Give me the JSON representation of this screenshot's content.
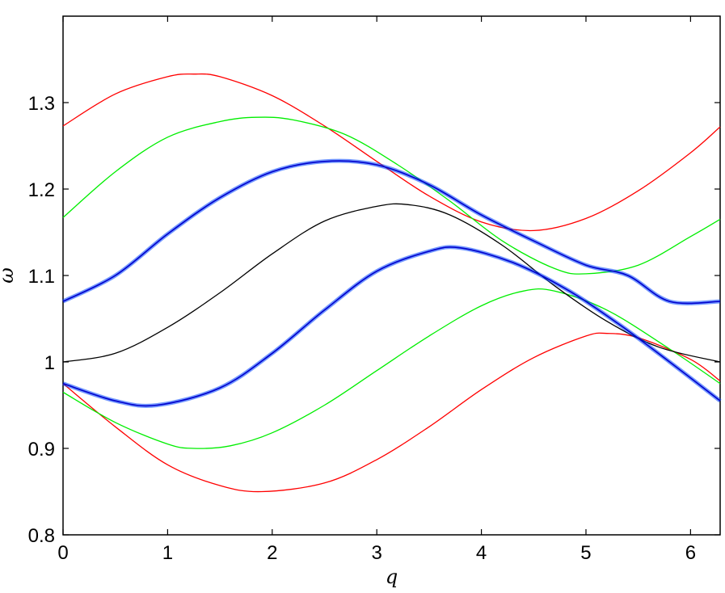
{
  "chart_data": {
    "type": "line",
    "title": "",
    "xlabel": "q",
    "ylabel": "ω",
    "xlim": [
      0,
      6.283
    ],
    "ylim": [
      0.8,
      1.4
    ],
    "xticks": [
      0,
      1,
      2,
      3,
      4,
      5,
      6
    ],
    "xtick_labels": [
      "0",
      "1",
      "2",
      "3",
      "4",
      "5",
      "6"
    ],
    "yticks": [
      0.8,
      0.9,
      1.0,
      1.1,
      1.2,
      1.3
    ],
    "ytick_labels": [
      "0.8",
      "0.9",
      "1",
      "1.1",
      "1.2",
      "1.3"
    ],
    "grid": false,
    "legend": "none",
    "series": [
      {
        "color": "#ff0000",
        "kind": "curve",
        "offset": 0,
        "A": 0.0,
        "B": 0.2,
        "points": [
          [
            0,
            1.273
          ],
          [
            0.5,
            1.31
          ],
          [
            1.0,
            1.33
          ],
          [
            1.25,
            1.333
          ],
          [
            1.5,
            1.33
          ],
          [
            2.0,
            1.308
          ],
          [
            2.5,
            1.273
          ],
          [
            3.0,
            1.232
          ],
          [
            3.5,
            1.192
          ],
          [
            4.0,
            1.162
          ],
          [
            4.5,
            1.152
          ],
          [
            5.0,
            1.166
          ],
          [
            5.5,
            1.198
          ],
          [
            6.0,
            1.242
          ],
          [
            6.283,
            1.272
          ]
        ]
      },
      {
        "color": "#ff0000",
        "kind": "curve",
        "points": [
          [
            0,
            0.975
          ],
          [
            0.5,
            0.925
          ],
          [
            1.0,
            0.881
          ],
          [
            1.5,
            0.857
          ],
          [
            1.9,
            0.85
          ],
          [
            2.5,
            0.86
          ],
          [
            3.0,
            0.887
          ],
          [
            3.5,
            0.925
          ],
          [
            4.0,
            0.968
          ],
          [
            4.5,
            1.005
          ],
          [
            5.0,
            1.03
          ],
          [
            5.2,
            1.033
          ],
          [
            5.5,
            1.028
          ],
          [
            6.0,
            1.003
          ],
          [
            6.283,
            0.978
          ]
        ]
      },
      {
        "color": "#00ee00",
        "kind": "curve",
        "points": [
          [
            0,
            1.167
          ],
          [
            0.5,
            1.22
          ],
          [
            1.0,
            1.26
          ],
          [
            1.5,
            1.278
          ],
          [
            1.85,
            1.283
          ],
          [
            2.2,
            1.28
          ],
          [
            2.7,
            1.263
          ],
          [
            3.2,
            1.228
          ],
          [
            3.7,
            1.186
          ],
          [
            4.2,
            1.14
          ],
          [
            4.7,
            1.108
          ],
          [
            5.0,
            1.102
          ],
          [
            5.5,
            1.112
          ],
          [
            6.0,
            1.145
          ],
          [
            6.283,
            1.165
          ]
        ]
      },
      {
        "color": "#00ee00",
        "kind": "curve",
        "points": [
          [
            0,
            0.965
          ],
          [
            0.5,
            0.93
          ],
          [
            1.0,
            0.905
          ],
          [
            1.25,
            0.9
          ],
          [
            1.6,
            0.903
          ],
          [
            2.0,
            0.918
          ],
          [
            2.5,
            0.95
          ],
          [
            3.0,
            0.99
          ],
          [
            3.5,
            1.03
          ],
          [
            4.0,
            1.065
          ],
          [
            4.4,
            1.082
          ],
          [
            4.7,
            1.082
          ],
          [
            5.2,
            1.06
          ],
          [
            5.8,
            1.015
          ],
          [
            6.283,
            0.975
          ]
        ]
      },
      {
        "color": "#0000cc",
        "kind": "contour",
        "points": [
          [
            0,
            1.07
          ],
          [
            0.5,
            1.1
          ],
          [
            1.0,
            1.148
          ],
          [
            1.5,
            1.19
          ],
          [
            2.0,
            1.22
          ],
          [
            2.5,
            1.232
          ],
          [
            3.0,
            1.228
          ],
          [
            3.5,
            1.205
          ],
          [
            4.0,
            1.17
          ],
          [
            4.5,
            1.14
          ],
          [
            5.0,
            1.112
          ],
          [
            5.4,
            1.1
          ],
          [
            5.8,
            1.07
          ],
          [
            6.283,
            1.07
          ]
        ]
      },
      {
        "color": "#000000",
        "kind": "curve",
        "points": [
          [
            0,
            1.0
          ],
          [
            0.5,
            1.01
          ],
          [
            1.0,
            1.04
          ],
          [
            1.5,
            1.08
          ],
          [
            2.0,
            1.125
          ],
          [
            2.5,
            1.163
          ],
          [
            3.0,
            1.18
          ],
          [
            3.3,
            1.182
          ],
          [
            3.7,
            1.17
          ],
          [
            4.2,
            1.135
          ],
          [
            4.7,
            1.088
          ],
          [
            5.2,
            1.047
          ],
          [
            5.7,
            1.017
          ],
          [
            6.283,
            1.0
          ]
        ]
      },
      {
        "color": "#0000cc",
        "kind": "contour",
        "points": [
          [
            0,
            0.975
          ],
          [
            0.5,
            0.955
          ],
          [
            0.9,
            0.95
          ],
          [
            1.5,
            0.97
          ],
          [
            2.0,
            1.01
          ],
          [
            2.5,
            1.06
          ],
          [
            3.0,
            1.105
          ],
          [
            3.5,
            1.128
          ],
          [
            3.8,
            1.132
          ],
          [
            4.3,
            1.115
          ],
          [
            4.8,
            1.085
          ],
          [
            5.3,
            1.045
          ],
          [
            5.8,
            1.0
          ],
          [
            6.283,
            0.955
          ]
        ]
      }
    ]
  }
}
